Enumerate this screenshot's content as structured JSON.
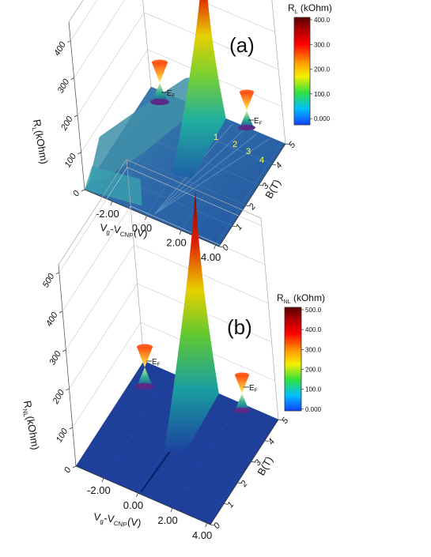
{
  "chart_data": [
    {
      "panel_label": "(a)",
      "type": "surface3d",
      "xlabel_main": "V",
      "xlabel_sub1": "g",
      "xlabel_mid": "-V",
      "xlabel_sub2": "CNP",
      "xlabel_unit": "(V)",
      "ylabel": "B(T)",
      "zlabel_main": "R",
      "zlabel_sub": "L",
      "zlabel_unit": "(kOhm)",
      "x_ticks": [
        "-2.00",
        "0.00",
        "2.00",
        "4.00"
      ],
      "x_tick_values": [
        -2,
        0,
        2,
        4
      ],
      "xlim": [
        -3.6,
        4.2
      ],
      "y_ticks": [
        "0",
        "1",
        "2",
        "3",
        "4",
        "5"
      ],
      "ylim": [
        0,
        5
      ],
      "z_ticks": [
        "0",
        "100",
        "200",
        "300",
        "400"
      ],
      "zlim": [
        0,
        450
      ],
      "peak": {
        "x": 0.4,
        "y": 5,
        "z": 450
      },
      "ll_labels": [
        "1",
        "2",
        "3",
        "4"
      ],
      "colorbar": {
        "title_main": "R",
        "title_sub": "L",
        "title_unit": " (kOhm)",
        "ticks": [
          "400.0",
          "300.0",
          "200.0",
          "100.0",
          "0.000"
        ]
      },
      "dirac_marker_label": "E",
      "dirac_marker_sub": "F"
    },
    {
      "panel_label": "(b)",
      "type": "surface3d",
      "xlabel_main": "V",
      "xlabel_sub1": "g",
      "xlabel_mid": "-V",
      "xlabel_sub2": "CNP",
      "xlabel_unit": "(V)",
      "ylabel": "B(T)",
      "zlabel_main": "R",
      "zlabel_sub": "NL",
      "zlabel_unit": "(kOhm)",
      "x_ticks": [
        "-2.00",
        "0.00",
        "2.00",
        "4.00"
      ],
      "x_tick_values": [
        -2,
        0,
        2,
        4
      ],
      "xlim": [
        -3.6,
        4.2
      ],
      "y_ticks": [
        "0",
        "1",
        "2",
        "3",
        "4",
        "5"
      ],
      "ylim": [
        0,
        5
      ],
      "z_ticks": [
        "0",
        "100",
        "200",
        "300",
        "400",
        "500"
      ],
      "zlim": [
        0,
        520
      ],
      "peak": {
        "x": 0.4,
        "y": 5,
        "z": 520
      },
      "colorbar": {
        "title_main": "R",
        "title_sub": "NL",
        "title_unit": " (kOhm)",
        "ticks": [
          "500.0",
          "400.0",
          "300.0",
          "200.0",
          "100.0",
          "0.000"
        ]
      },
      "dirac_marker_label": "E",
      "dirac_marker_sub": "F"
    }
  ],
  "colors": {
    "surface_base": "#2a5a9e",
    "surface_b": "#1e3f9a",
    "ridge_top": "#8b0000",
    "cone_upper": "#ff6a1a",
    "cone_lower": "#2aa080",
    "cone_base": "#5a2a8a"
  }
}
